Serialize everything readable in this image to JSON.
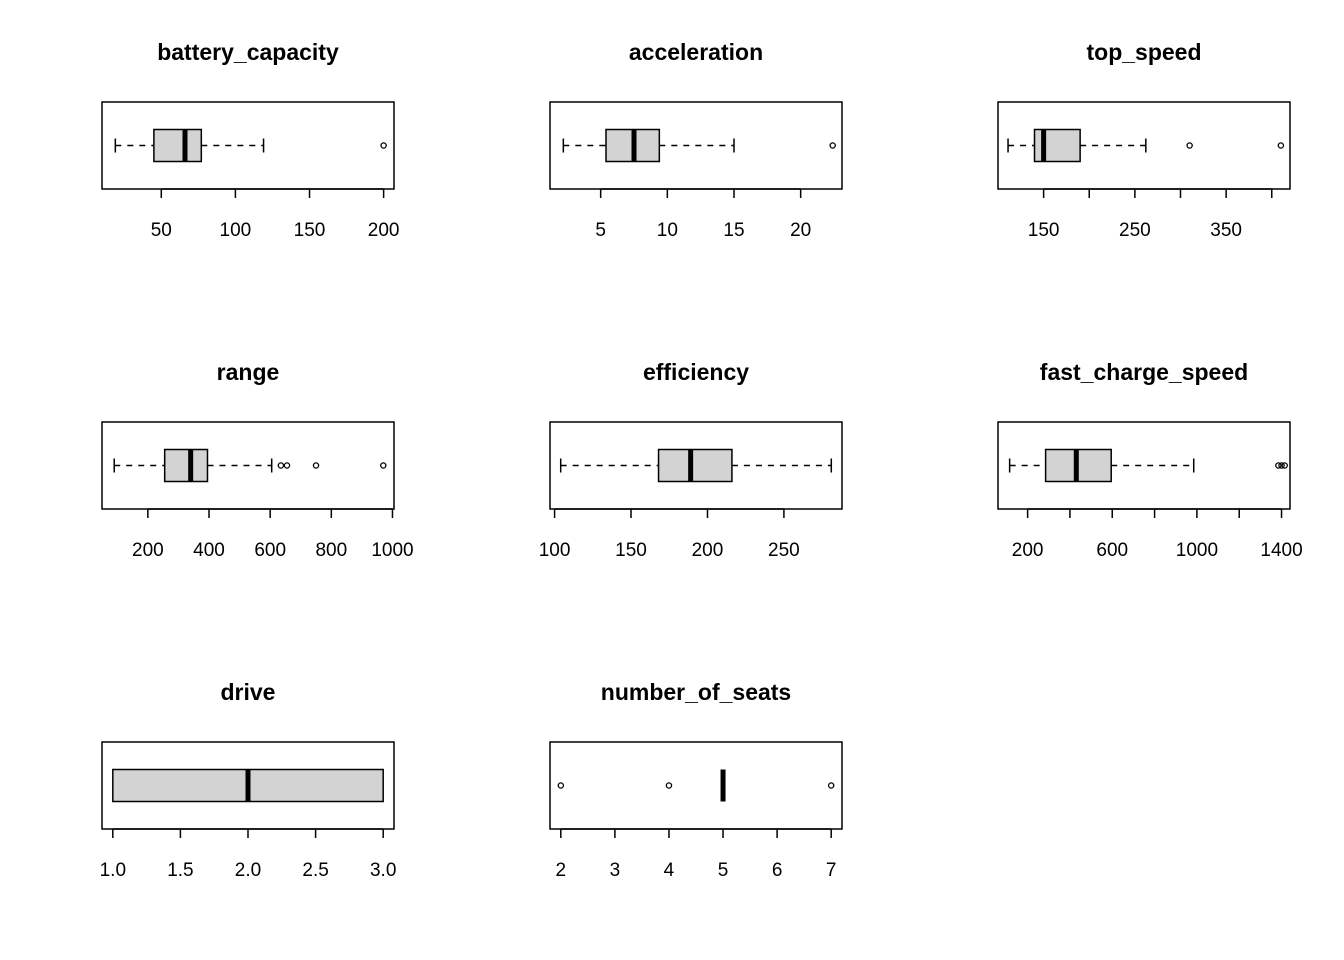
{
  "colors": {
    "box_fill": "#d3d3d3",
    "stroke": "#000000",
    "background": "#ffffff"
  },
  "chart_data": [
    {
      "type": "boxplot",
      "orientation": "horizontal",
      "title": "battery_capacity",
      "ticks": [
        50,
        100,
        150,
        200
      ],
      "tick_labels": [
        "50",
        "100",
        "150",
        "200"
      ],
      "xlim": [
        10,
        207
      ],
      "stats": {
        "whisker_low": 19,
        "q1": 45,
        "median": 66,
        "q3": 77,
        "whisker_high": 119
      },
      "outliers": [
        200
      ]
    },
    {
      "type": "boxplot",
      "orientation": "horizontal",
      "title": "acceleration",
      "ticks": [
        5,
        10,
        15,
        20
      ],
      "tick_labels": [
        "5",
        "10",
        "15",
        "20"
      ],
      "xlim": [
        1.2,
        23.1
      ],
      "stats": {
        "whisker_low": 2.2,
        "q1": 5.4,
        "median": 7.5,
        "q3": 9.4,
        "whisker_high": 15
      },
      "outliers": [
        22.4
      ]
    },
    {
      "type": "boxplot",
      "orientation": "horizontal",
      "title": "top_speed",
      "ticks": [
        150,
        200,
        250,
        300,
        350,
        400
      ],
      "tick_labels": [
        "150",
        "",
        "250",
        "",
        "350",
        ""
      ],
      "xlim": [
        100,
        420
      ],
      "stats": {
        "whisker_low": 111,
        "q1": 140,
        "median": 150,
        "q3": 190,
        "whisker_high": 262
      },
      "outliers": [
        310,
        410
      ]
    },
    {
      "type": "boxplot",
      "orientation": "horizontal",
      "title": "range",
      "ticks": [
        200,
        400,
        600,
        800,
        1000
      ],
      "tick_labels": [
        "200",
        "400",
        "600",
        "800",
        "1000"
      ],
      "xlim": [
        50,
        1005
      ],
      "stats": {
        "whisker_low": 90,
        "q1": 255,
        "median": 340,
        "q3": 395,
        "whisker_high": 605
      },
      "outliers": [
        635,
        655,
        750,
        970
      ]
    },
    {
      "type": "boxplot",
      "orientation": "horizontal",
      "title": "efficiency",
      "ticks": [
        100,
        150,
        200,
        250
      ],
      "tick_labels": [
        "100",
        "150",
        "200",
        "250"
      ],
      "xlim": [
        97,
        288
      ],
      "stats": {
        "whisker_low": 104,
        "q1": 168,
        "median": 189,
        "q3": 216,
        "whisker_high": 281
      },
      "outliers": []
    },
    {
      "type": "boxplot",
      "orientation": "horizontal",
      "title": "fast_charge_speed",
      "ticks": [
        200,
        400,
        600,
        800,
        1000,
        1200,
        1400
      ],
      "tick_labels": [
        "200",
        "",
        "600",
        "",
        "1000",
        "",
        "1400"
      ],
      "xlim": [
        60,
        1440
      ],
      "stats": {
        "whisker_low": 115,
        "q1": 285,
        "median": 430,
        "q3": 595,
        "whisker_high": 985
      },
      "outliers": [
        1385,
        1400,
        1415
      ]
    },
    {
      "type": "boxplot",
      "orientation": "horizontal",
      "title": "drive",
      "ticks": [
        1.0,
        1.5,
        2.0,
        2.5,
        3.0
      ],
      "tick_labels": [
        "1.0",
        "1.5",
        "2.0",
        "2.5",
        "3.0"
      ],
      "xlim": [
        0.92,
        3.08
      ],
      "stats": {
        "whisker_low": 1,
        "q1": 1,
        "median": 2,
        "q3": 3,
        "whisker_high": 3
      },
      "outliers": []
    },
    {
      "type": "boxplot",
      "orientation": "horizontal",
      "title": "number_of_seats",
      "ticks": [
        2,
        3,
        4,
        5,
        6,
        7
      ],
      "tick_labels": [
        "2",
        "3",
        "4",
        "5",
        "6",
        "7"
      ],
      "xlim": [
        1.8,
        7.2
      ],
      "stats": {
        "whisker_low": 5,
        "q1": 5,
        "median": 5,
        "q3": 5,
        "whisker_high": 5
      },
      "outliers": [
        2,
        4,
        7
      ]
    }
  ]
}
